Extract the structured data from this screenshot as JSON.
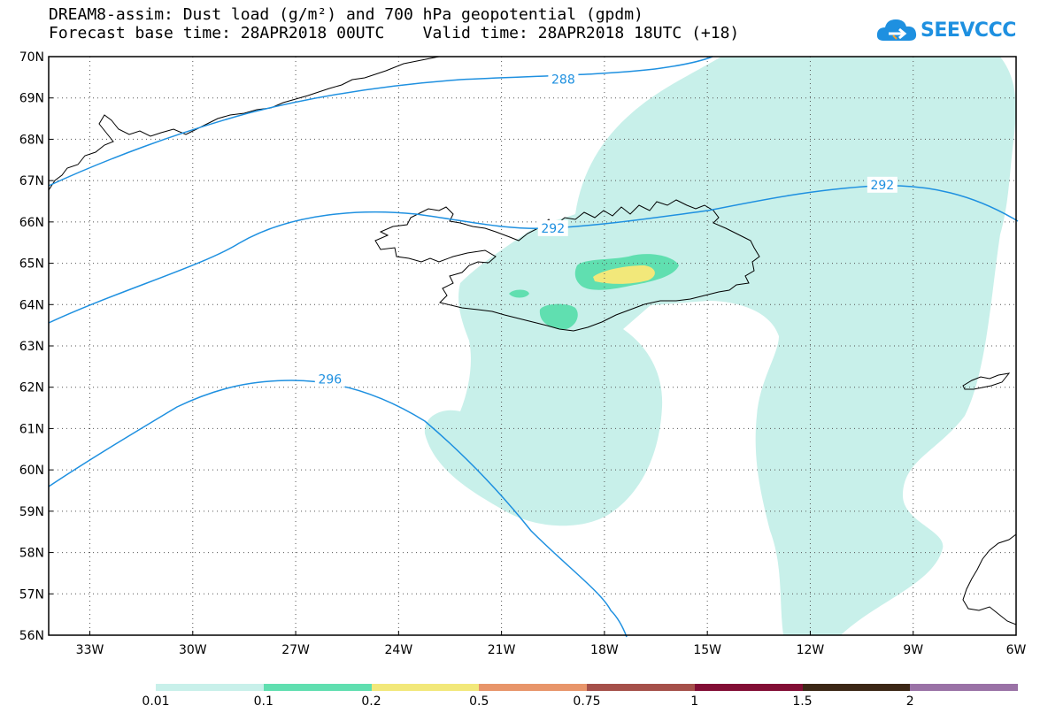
{
  "title_line1": "DREAM8-assim: Dust load (g/m²) and 700 hPa geopotential (gpdm)",
  "title_line2": "Forecast base time: 28APR2018 00UTC    Valid time: 28APR2018 18UTC (+18)",
  "logo_text": "SEEVCCC",
  "map": {
    "lat_range": [
      56,
      70
    ],
    "lon_range": [
      -34.2,
      -6
    ],
    "lat_ticks": [
      {
        "value": 70,
        "label": "70N"
      },
      {
        "value": 69,
        "label": "69N"
      },
      {
        "value": 68,
        "label": "68N"
      },
      {
        "value": 67,
        "label": "67N"
      },
      {
        "value": 66,
        "label": "66N"
      },
      {
        "value": 65,
        "label": "65N"
      },
      {
        "value": 64,
        "label": "64N"
      },
      {
        "value": 63,
        "label": "63N"
      },
      {
        "value": 62,
        "label": "62N"
      },
      {
        "value": 61,
        "label": "61N"
      },
      {
        "value": 60,
        "label": "60N"
      },
      {
        "value": 59,
        "label": "59N"
      },
      {
        "value": 58,
        "label": "58N"
      },
      {
        "value": 57,
        "label": "57N"
      },
      {
        "value": 56,
        "label": "56N"
      }
    ],
    "lon_ticks": [
      {
        "value": -33,
        "label": "33W"
      },
      {
        "value": -30,
        "label": "30W"
      },
      {
        "value": -27,
        "label": "27W"
      },
      {
        "value": -24,
        "label": "24W"
      },
      {
        "value": -21,
        "label": "21W"
      },
      {
        "value": -18,
        "label": "18W"
      },
      {
        "value": -15,
        "label": "15W"
      },
      {
        "value": -12,
        "label": "12W"
      },
      {
        "value": -9,
        "label": "9W"
      },
      {
        "value": -6,
        "label": "6W"
      }
    ],
    "contour_labels": [
      {
        "text": "288",
        "lon": -19.2,
        "lat": 69.45
      },
      {
        "text": "292",
        "lon": -9.9,
        "lat": 66.9
      },
      {
        "text": "292",
        "lon": -19.5,
        "lat": 65.85
      },
      {
        "text": "296",
        "lon": -26.0,
        "lat": 62.2
      }
    ]
  },
  "colors": {
    "coast": "#000000",
    "contour": "#1e90e0",
    "dust_0_01": "#c8f0ea",
    "dust_0_1": "#60dfb0",
    "dust_0_2": "#f2e87a"
  },
  "colorbar": {
    "colors": [
      "#c8f0ea",
      "#60dfb0",
      "#f2e87a",
      "#e8956a",
      "#a5504a",
      "#820e35",
      "#3c2716",
      "#9a72a6"
    ],
    "labels": [
      "0.01",
      "0.1",
      "0.2",
      "0.5",
      "0.75",
      "1",
      "1.5",
      "2"
    ]
  }
}
